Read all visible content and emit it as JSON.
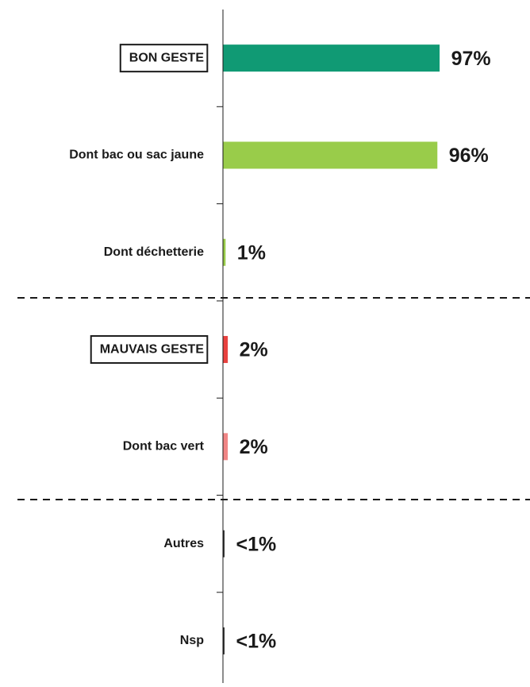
{
  "chart_data": {
    "type": "barh",
    "categories": [
      "BON GESTE",
      "Dont bac ou sac jaune",
      "Dont déchetterie",
      "MAUVAIS GESTE",
      "Dont bac vert",
      "Autres",
      "Nsp"
    ],
    "values": [
      97,
      96,
      1,
      2,
      2,
      0.4,
      0.4
    ],
    "value_labels": [
      "97%",
      "96%",
      "1%",
      "2%",
      "2%",
      "<1%",
      "<1%"
    ],
    "colors": [
      "#109a74",
      "#99cc4a",
      "#99cc4a",
      "#e8413f",
      "#f08585",
      "#333333",
      "#333333"
    ],
    "xlim": [
      0,
      100
    ]
  }
}
